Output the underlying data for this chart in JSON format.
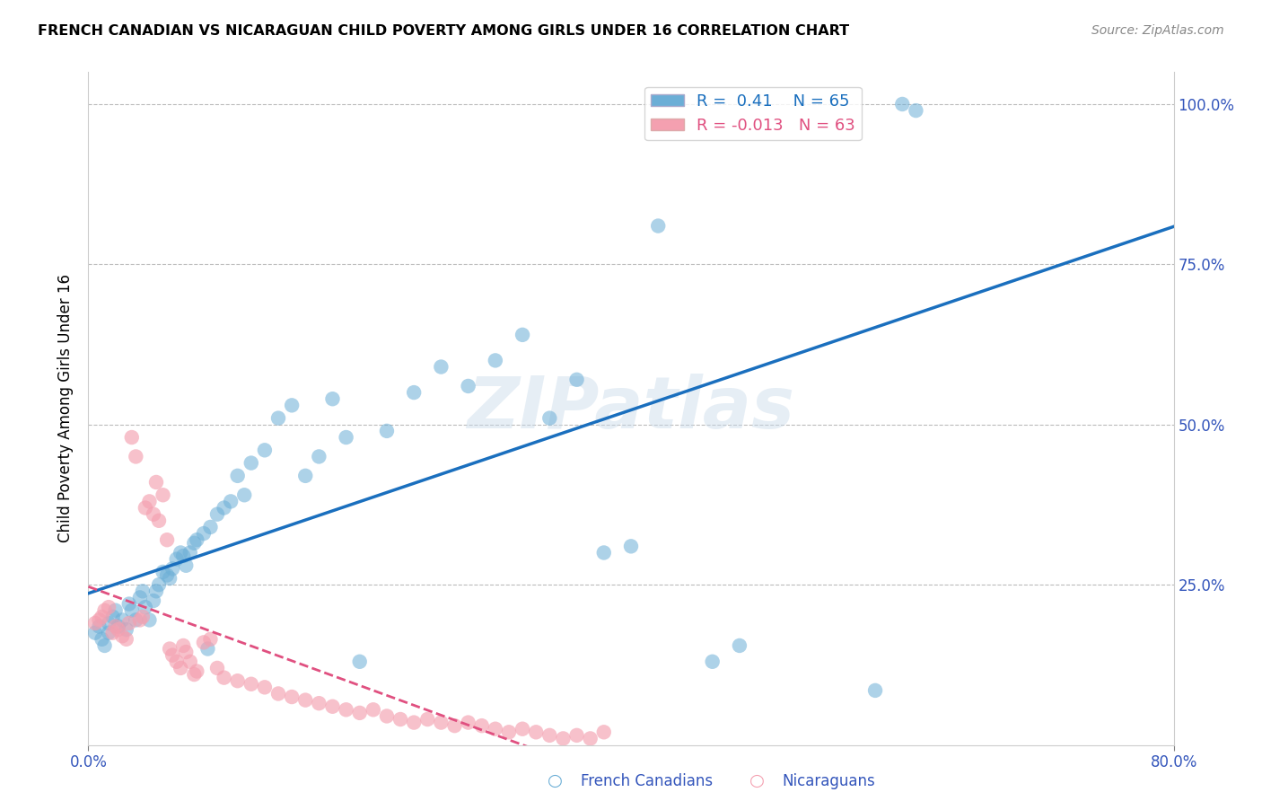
{
  "title": "FRENCH CANADIAN VS NICARAGUAN CHILD POVERTY AMONG GIRLS UNDER 16 CORRELATION CHART",
  "source": "Source: ZipAtlas.com",
  "ylabel": "Child Poverty Among Girls Under 16",
  "xlim": [
    0.0,
    0.8
  ],
  "ylim": [
    0.0,
    1.05
  ],
  "yticks": [
    0.0,
    0.25,
    0.5,
    0.75,
    1.0
  ],
  "french_R": 0.41,
  "french_N": 65,
  "nicaraguan_R": -0.013,
  "nicaraguan_N": 63,
  "blue_color": "#6baed6",
  "pink_color": "#f4a0b0",
  "blue_line_color": "#1a6fbe",
  "pink_line_color": "#e05080",
  "legend_R_color": "#1a6fbe",
  "french_x": [
    0.005,
    0.008,
    0.01,
    0.012,
    0.015,
    0.015,
    0.018,
    0.02,
    0.022,
    0.025,
    0.028,
    0.03,
    0.032,
    0.035,
    0.038,
    0.04,
    0.042,
    0.045,
    0.048,
    0.05,
    0.052,
    0.055,
    0.058,
    0.06,
    0.062,
    0.065,
    0.068,
    0.07,
    0.072,
    0.075,
    0.078,
    0.08,
    0.085,
    0.088,
    0.09,
    0.095,
    0.1,
    0.105,
    0.11,
    0.115,
    0.12,
    0.13,
    0.14,
    0.15,
    0.16,
    0.17,
    0.18,
    0.19,
    0.2,
    0.22,
    0.24,
    0.26,
    0.28,
    0.3,
    0.32,
    0.34,
    0.36,
    0.38,
    0.4,
    0.42,
    0.46,
    0.48,
    0.58,
    0.6,
    0.61
  ],
  "french_y": [
    0.175,
    0.185,
    0.165,
    0.155,
    0.19,
    0.175,
    0.2,
    0.21,
    0.185,
    0.195,
    0.18,
    0.22,
    0.21,
    0.195,
    0.23,
    0.24,
    0.215,
    0.195,
    0.225,
    0.24,
    0.25,
    0.27,
    0.265,
    0.26,
    0.275,
    0.29,
    0.3,
    0.295,
    0.28,
    0.3,
    0.315,
    0.32,
    0.33,
    0.15,
    0.34,
    0.36,
    0.37,
    0.38,
    0.42,
    0.39,
    0.44,
    0.46,
    0.51,
    0.53,
    0.42,
    0.45,
    0.54,
    0.48,
    0.13,
    0.49,
    0.55,
    0.59,
    0.56,
    0.6,
    0.64,
    0.51,
    0.57,
    0.3,
    0.31,
    0.81,
    0.13,
    0.155,
    0.085,
    1.0,
    0.99
  ],
  "nicaraguan_x": [
    0.005,
    0.008,
    0.01,
    0.012,
    0.015,
    0.018,
    0.02,
    0.022,
    0.025,
    0.028,
    0.03,
    0.032,
    0.035,
    0.038,
    0.04,
    0.042,
    0.045,
    0.048,
    0.05,
    0.052,
    0.055,
    0.058,
    0.06,
    0.062,
    0.065,
    0.068,
    0.07,
    0.072,
    0.075,
    0.078,
    0.08,
    0.085,
    0.09,
    0.095,
    0.1,
    0.11,
    0.12,
    0.13,
    0.14,
    0.15,
    0.16,
    0.17,
    0.18,
    0.19,
    0.2,
    0.21,
    0.22,
    0.23,
    0.24,
    0.25,
    0.26,
    0.27,
    0.28,
    0.29,
    0.3,
    0.31,
    0.32,
    0.33,
    0.34,
    0.35,
    0.36,
    0.37,
    0.38
  ],
  "nicaraguan_y": [
    0.19,
    0.195,
    0.2,
    0.21,
    0.215,
    0.175,
    0.185,
    0.18,
    0.17,
    0.165,
    0.19,
    0.48,
    0.45,
    0.195,
    0.2,
    0.37,
    0.38,
    0.36,
    0.41,
    0.35,
    0.39,
    0.32,
    0.15,
    0.14,
    0.13,
    0.12,
    0.155,
    0.145,
    0.13,
    0.11,
    0.115,
    0.16,
    0.165,
    0.12,
    0.105,
    0.1,
    0.095,
    0.09,
    0.08,
    0.075,
    0.07,
    0.065,
    0.06,
    0.055,
    0.05,
    0.055,
    0.045,
    0.04,
    0.035,
    0.04,
    0.035,
    0.03,
    0.035,
    0.03,
    0.025,
    0.02,
    0.025,
    0.02,
    0.015,
    0.01,
    0.015,
    0.01,
    0.02
  ]
}
